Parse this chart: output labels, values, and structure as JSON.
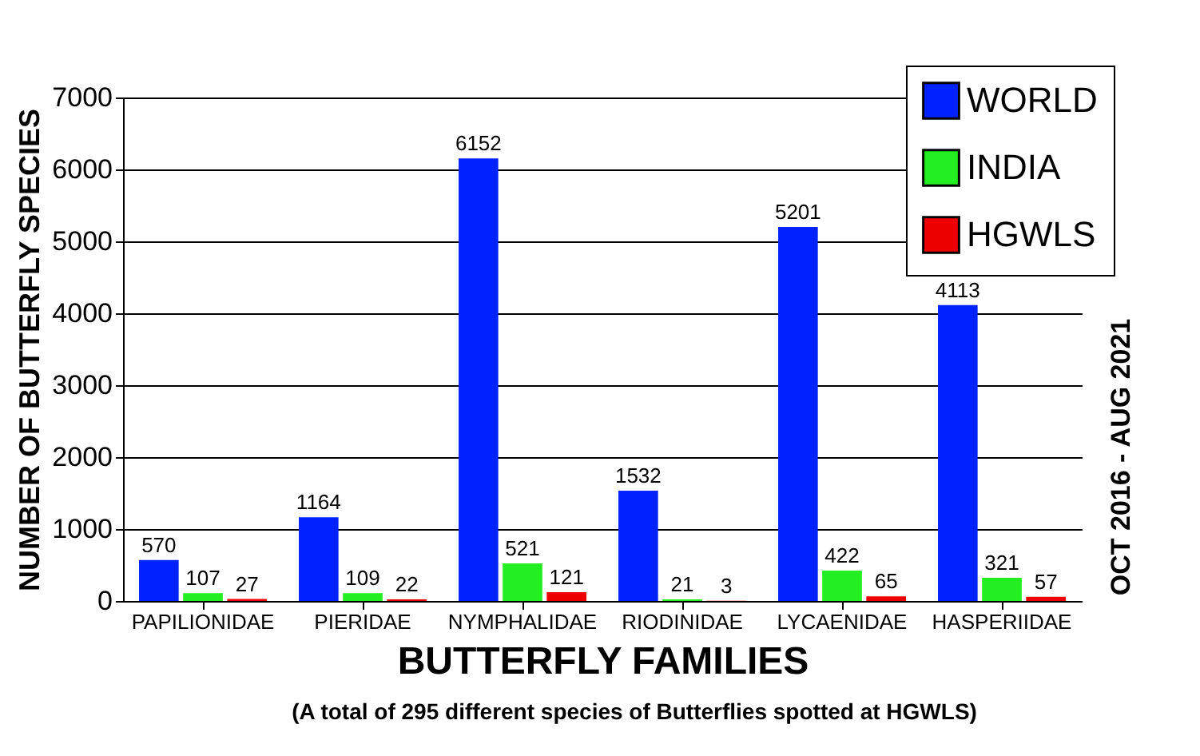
{
  "chart_data": {
    "type": "bar",
    "xlabel": "BUTTERFLY FAMILIES",
    "ylabel": "NUMBER OF BUTTERFLY SPECIES",
    "categories": [
      "PAPILIONIDAE",
      "PIERIDAE",
      "NYMPHALIDAE",
      "RIODINIDAE",
      "LYCAENIDAE",
      "HASPERIIDAE"
    ],
    "series": [
      {
        "name": "WORLD",
        "color": "#0022ff",
        "values": [
          570,
          1164,
          6152,
          1532,
          5201,
          4113
        ]
      },
      {
        "name": "INDIA",
        "color": "#22ee22",
        "values": [
          107,
          109,
          521,
          21,
          422,
          321
        ]
      },
      {
        "name": "HGWLS",
        "color": "#ee0000",
        "values": [
          27,
          22,
          121,
          3,
          65,
          57
        ]
      }
    ],
    "ylim": [
      0,
      7000
    ],
    "yticks": [
      0,
      1000,
      2000,
      3000,
      4000,
      5000,
      6000,
      7000
    ],
    "grid": "y",
    "legend": "top right",
    "data_labels": true,
    "annotations": [
      "OCT 2016 - AUG 2021",
      "(A total of 295 different species of Butterflies spotted at HGWLS)"
    ]
  }
}
